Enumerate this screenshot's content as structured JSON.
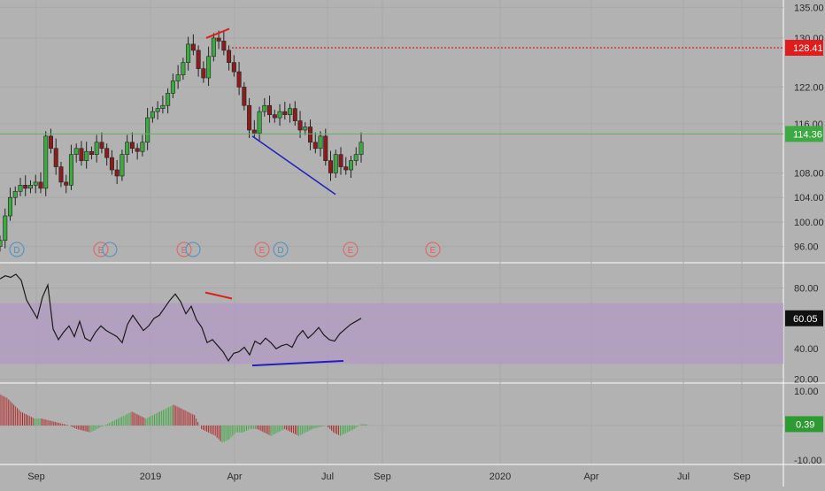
{
  "chart_data": [
    {
      "type": "candlestick",
      "panel": "price",
      "time_axis": [
        "Sep",
        "2019",
        "Apr",
        "Jul",
        "Sep",
        "2020",
        "Apr",
        "Jul",
        "Sep"
      ],
      "y_ticks": [
        "135.00",
        "130.00",
        "122.00",
        "116.00",
        "108.00",
        "104.00",
        "100.00",
        "96.00"
      ],
      "last_price": {
        "value": "114.36",
        "color": "#3ea842"
      },
      "horizontal_level": {
        "value": "128.41",
        "color": "#e01c1c"
      },
      "series": [
        {
          "values": [
            97,
            101,
            104,
            105,
            106,
            105.5,
            106,
            106.5,
            105.5,
            114,
            112,
            109,
            106.5,
            106,
            111,
            112,
            110,
            111.5,
            111,
            113,
            112,
            110.5,
            108.5,
            107.5,
            111,
            113,
            112,
            111.5,
            113,
            117,
            118,
            118.5,
            119,
            121,
            123,
            124,
            126,
            129,
            128,
            125,
            123.5,
            127,
            130,
            129.5,
            128,
            126,
            124.5,
            122,
            119,
            115,
            114.5,
            118,
            119,
            117.5,
            117,
            118,
            117.5,
            118.5,
            116.5,
            115,
            115.5,
            113,
            112,
            114,
            110,
            108,
            111,
            109,
            108.5,
            110,
            111,
            113
          ]
        },
        {
          "name": "trendlines",
          "peaks": [
            [
              130,
              131.5
            ],
            [
              128.6,
              131.8
            ]
          ],
          "lows": [
            [
              114,
              115
            ],
            [
              105,
              104.5
            ]
          ]
        }
      ],
      "events": [
        "D",
        "E",
        "E",
        "E",
        "D",
        "E",
        "E"
      ]
    },
    {
      "type": "line",
      "panel": "oscillator",
      "y_ticks": [
        "80.00",
        "60.00",
        "40.00",
        "20.00"
      ],
      "band": [
        30,
        70
      ],
      "last_value": "60.05",
      "values": [
        86,
        88,
        87,
        89,
        85,
        72,
        66,
        60,
        74,
        82,
        53,
        46,
        51,
        55,
        48,
        58,
        47,
        45,
        51,
        55,
        52,
        50,
        48,
        44,
        56,
        62,
        57,
        52,
        55,
        60,
        62,
        67,
        72,
        76,
        71,
        63,
        68,
        59,
        54,
        44,
        46,
        42,
        38,
        32,
        37,
        38,
        41,
        36,
        45,
        43,
        47,
        44,
        40,
        42,
        43,
        41,
        48,
        52,
        47,
        50,
        54,
        49,
        46,
        45,
        50,
        53,
        56,
        58,
        60
      ],
      "divergence_lines": {
        "peaks": [
          [
            77,
            73
          ]
        ],
        "lows": [
          [
            29,
            32
          ]
        ]
      }
    },
    {
      "type": "histogram",
      "panel": "momentum",
      "y_ticks": [
        "10.00",
        "-10.00"
      ],
      "last_value": "0.39",
      "values": [
        9,
        8,
        6,
        4,
        3,
        2,
        2,
        1.5,
        1,
        0.5,
        0,
        -1,
        -1.5,
        -2,
        -1,
        0,
        1,
        2,
        3,
        4,
        3,
        2,
        3,
        4,
        5,
        6,
        5,
        4,
        3,
        -1,
        -2,
        -3,
        -5,
        -4,
        -2,
        -2,
        -1,
        -1,
        -2,
        -3,
        -2,
        -1,
        -2,
        -3,
        -2,
        -1,
        -0.5,
        0,
        -2,
        -3,
        -2,
        -1,
        0.39
      ]
    }
  ]
}
